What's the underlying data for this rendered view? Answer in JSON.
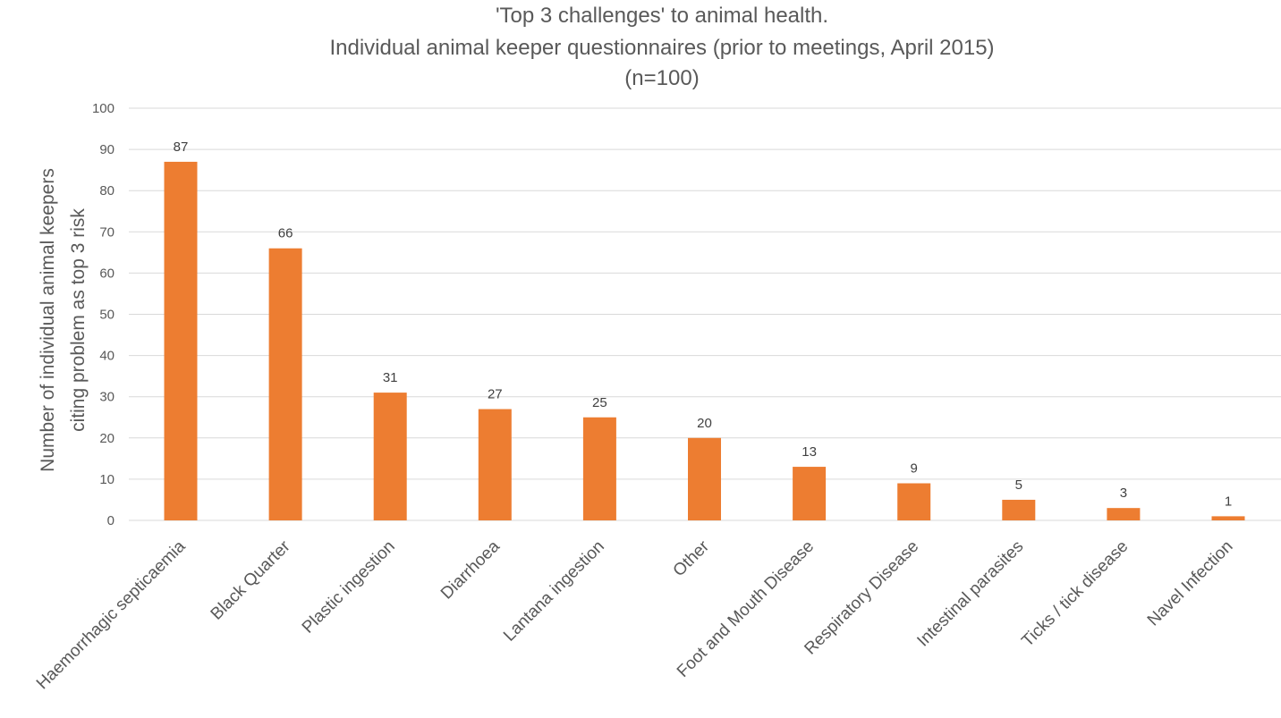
{
  "chart_data": {
    "type": "bar",
    "title_lines": [
      "'Top 3 challenges' to animal health.",
      "Individual animal keeper questionnaires (prior to meetings, April 2015)",
      "(n=100)"
    ],
    "ylabel_lines": [
      "Number of individual animal keepers",
      "citing problem as top 3 risk"
    ],
    "xlabel": "",
    "ylim": [
      0,
      100
    ],
    "yticks": [
      0,
      10,
      20,
      30,
      40,
      50,
      60,
      70,
      80,
      90,
      100
    ],
    "grid": true,
    "legend": "none",
    "bar_color": "#ED7D31",
    "categories": [
      "Haemorrhagic septicaemia",
      "Black Quarter",
      "Plastic ingestion",
      "Diarrhoea",
      "Lantana ingestion",
      "Other",
      "Foot and Mouth Disease",
      "Respiratory Disease",
      "Intestinal parasites",
      "Ticks / tick disease",
      "Navel Infection"
    ],
    "values": [
      87,
      66,
      31,
      27,
      25,
      20,
      13,
      9,
      5,
      3,
      1
    ],
    "data_labels": true
  }
}
